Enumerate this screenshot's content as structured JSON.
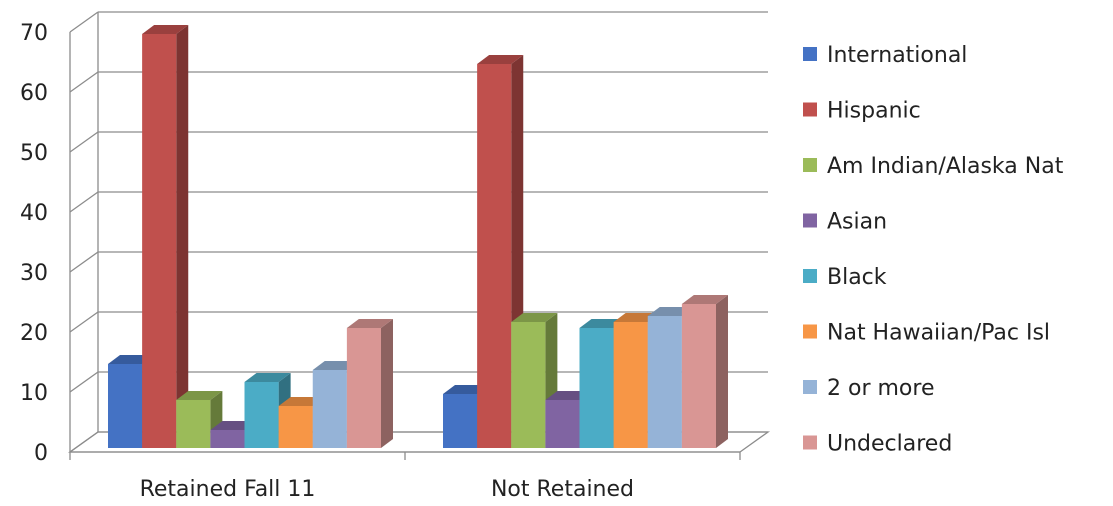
{
  "chart_data": {
    "type": "bar",
    "title": "",
    "xlabel": "",
    "ylabel": "",
    "ylim": [
      0,
      70
    ],
    "yticks": [
      0,
      10,
      20,
      30,
      40,
      50,
      60,
      70
    ],
    "grid": true,
    "legend_position": "right",
    "style": "3d-clustered-column",
    "categories": [
      "Retained Fall 11",
      "Not Retained"
    ],
    "series": [
      {
        "name": "International",
        "color": "#4472C4",
        "values": [
          14,
          9
        ]
      },
      {
        "name": "Hispanic",
        "color": "#C0504D",
        "values": [
          69,
          64
        ]
      },
      {
        "name": "Am Indian/Alaska Nat",
        "color": "#9BBB59",
        "values": [
          8,
          21
        ]
      },
      {
        "name": "Asian",
        "color": "#8064A2",
        "values": [
          3,
          8
        ]
      },
      {
        "name": "Black",
        "color": "#4BACC6",
        "values": [
          11,
          20
        ]
      },
      {
        "name": "Nat Hawaiian/Pac Isl",
        "color": "#F79646",
        "values": [
          7,
          21
        ]
      },
      {
        "name": "2 or more",
        "color": "#95B3D7",
        "values": [
          13,
          22
        ]
      },
      {
        "name": "Undeclared",
        "color": "#D99694",
        "values": [
          20,
          24
        ]
      }
    ]
  }
}
